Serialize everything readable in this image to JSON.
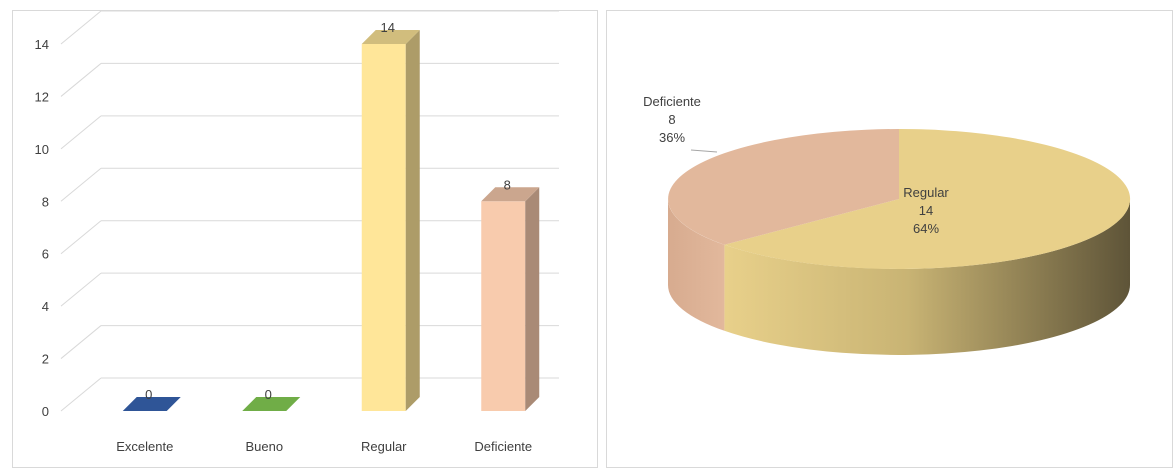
{
  "chart_data": [
    {
      "type": "bar",
      "categories": [
        "Excelente",
        "Bueno",
        "Regular",
        "Deficiente"
      ],
      "values": [
        0,
        0,
        14,
        8
      ],
      "data_labels": [
        "0",
        "0",
        "14",
        "8"
      ],
      "colors": [
        "#2f5597",
        "#70ad47",
        "#ffe699",
        "#f8cbad"
      ],
      "ylim": [
        0,
        14
      ],
      "yticks": [
        "0",
        "2",
        "4",
        "6",
        "8",
        "10",
        "12",
        "14"
      ],
      "grid": true,
      "title": "",
      "xlabel": "",
      "ylabel": ""
    },
    {
      "type": "pie",
      "slices": [
        {
          "label": "Regular",
          "value": 14,
          "percent": "64%",
          "color": "#e8d08a"
        },
        {
          "label": "Deficiente",
          "value": 8,
          "percent": "36%",
          "color": "#e2b89c"
        }
      ],
      "three_d": true
    }
  ]
}
